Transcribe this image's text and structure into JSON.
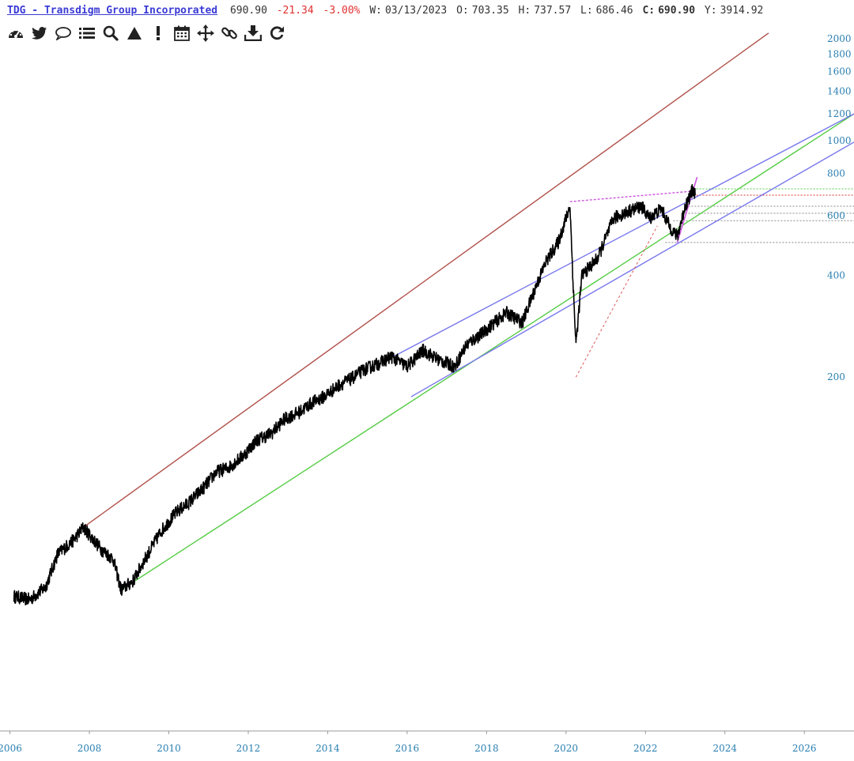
{
  "header": {
    "title": "TDG - Transdigm Group Incorporated",
    "price": "690.90",
    "change": "-21.34",
    "change_pct": "-3.00%",
    "w_label": "W:",
    "date": "03/13/2023",
    "o_label": "O:",
    "open": "703.35",
    "h_label": "H:",
    "high": "737.57",
    "l_label": "L:",
    "low": "686.46",
    "c_label": "C:",
    "close": "690.90",
    "y_label": "Y:",
    "year": "3914.92"
  },
  "toolbar": {
    "icons": [
      "dashboard-icon",
      "twitter-icon",
      "comment-icon",
      "list-icon",
      "search-icon",
      "triangle-icon",
      "exclamation-icon",
      "calendar-icon",
      "move-icon",
      "link-icon",
      "download-icon",
      "refresh-icon"
    ]
  },
  "colors": {
    "price": "#000000",
    "upper_channel": "#b0504a",
    "lower_channel": "#55cc44",
    "trend_blue": "#7777ee",
    "magenta": "#cc55dd",
    "axis_labels": "#2a7fb0"
  },
  "chart_data": {
    "type": "line",
    "y_scale": "log",
    "ylim": [
      30,
      2100
    ],
    "xlim": [
      2005.75,
      2027.25
    ],
    "y_ticks": [
      200,
      400,
      600,
      800,
      1000,
      1200,
      1400,
      1600,
      1800,
      2000
    ],
    "x_ticks": [
      2006,
      2008,
      2010,
      2012,
      2014,
      2016,
      2018,
      2020,
      2022,
      2024,
      2026
    ],
    "series": [
      {
        "points": [
          [
            2006.1,
            45
          ],
          [
            2006.5,
            44
          ],
          [
            2006.9,
            48
          ],
          [
            2007.2,
            60
          ],
          [
            2007.6,
            66
          ],
          [
            2007.85,
            72
          ],
          [
            2008.3,
            62
          ],
          [
            2008.6,
            58
          ],
          [
            2008.8,
            47
          ],
          [
            2009.1,
            50
          ],
          [
            2009.4,
            58
          ],
          [
            2009.8,
            70
          ],
          [
            2010.2,
            80
          ],
          [
            2010.5,
            85
          ],
          [
            2010.9,
            95
          ],
          [
            2011.2,
            105
          ],
          [
            2011.5,
            108
          ],
          [
            2011.9,
            118
          ],
          [
            2012.2,
            130
          ],
          [
            2012.6,
            137
          ],
          [
            2012.9,
            150
          ],
          [
            2013.3,
            158
          ],
          [
            2013.6,
            168
          ],
          [
            2013.9,
            175
          ],
          [
            2014.3,
            190
          ],
          [
            2014.6,
            198
          ],
          [
            2014.9,
            210
          ],
          [
            2015.3,
            220
          ],
          [
            2015.6,
            230
          ],
          [
            2016.0,
            215
          ],
          [
            2016.4,
            240
          ],
          [
            2016.8,
            225
          ],
          [
            2017.2,
            215
          ],
          [
            2017.5,
            250
          ],
          [
            2017.9,
            270
          ],
          [
            2018.2,
            290
          ],
          [
            2018.5,
            310
          ],
          [
            2018.9,
            290
          ],
          [
            2019.2,
            360
          ],
          [
            2019.5,
            440
          ],
          [
            2019.8,
            500
          ],
          [
            2020.1,
            640
          ],
          [
            2020.2,
            330
          ],
          [
            2020.25,
            250
          ],
          [
            2020.4,
            400
          ],
          [
            2020.8,
            450
          ],
          [
            2021.2,
            590
          ],
          [
            2021.6,
            620
          ],
          [
            2021.9,
            640
          ],
          [
            2022.1,
            590
          ],
          [
            2022.4,
            630
          ],
          [
            2022.6,
            560
          ],
          [
            2022.8,
            520
          ],
          [
            2023.0,
            640
          ],
          [
            2023.2,
            720
          ],
          [
            2023.25,
            690
          ]
        ]
      }
    ],
    "trendlines": [
      {
        "color": "#b0504a",
        "from": [
          2007.85,
          72
        ],
        "to": [
          2025.1,
          2080
        ]
      },
      {
        "color": "#55cc44",
        "from": [
          2008.8,
          47
        ],
        "to": [
          2027.25,
          1200
        ]
      },
      {
        "color": "#7777ee",
        "from": [
          2015.5,
          225
        ],
        "to": [
          2027.25,
          1200
        ]
      },
      {
        "color": "#7777ee",
        "from": [
          2016.1,
          175
        ],
        "to": [
          2027.25,
          990
        ]
      }
    ],
    "levels": [
      {
        "color": "#55cc44",
        "value": 720,
        "from": 2023.2
      },
      {
        "color": "#e03030",
        "value": 690,
        "from": 2023.2
      },
      {
        "color": "#888888",
        "value": 640,
        "from": 2023.0
      },
      {
        "color": "#888888",
        "value": 610,
        "from": 2023.0
      },
      {
        "color": "#888888",
        "value": 580,
        "from": 2022.7
      },
      {
        "color": "#888888",
        "value": 500,
        "from": 2022.5
      }
    ]
  }
}
